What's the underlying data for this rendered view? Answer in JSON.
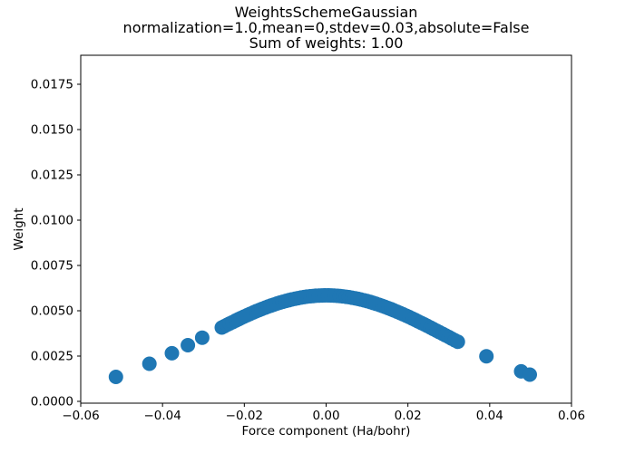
{
  "figure": {
    "background": "#ffffff",
    "text_color": "#000000",
    "accent_color": "#1f77b4"
  },
  "title": {
    "line1": "WeightsSchemeGaussian",
    "line2": "normalization=1.0,mean=0,stdev=0.03,absolute=False",
    "line3": "Sum of weights: 1.00"
  },
  "chart_data": {
    "type": "scatter",
    "title": "WeightsSchemeGaussian\nnormalization=1.0,mean=0,stdev=0.03,absolute=False\nSum of weights: 1.00",
    "xlabel": "Force component (Ha/bohr)",
    "ylabel": "Weight",
    "xlim": [
      -0.06,
      0.06
    ],
    "ylim": [
      -0.0001,
      0.0191
    ],
    "grid": false,
    "legend": "none",
    "marker_color": "#1f77b4",
    "marker_radius_px": 8,
    "xticks": [
      -0.06,
      -0.04,
      -0.02,
      0.0,
      0.02,
      0.04,
      0.06
    ],
    "xtick_labels": [
      "−0.06",
      "−0.04",
      "−0.02",
      "0.00",
      "0.02",
      "0.04",
      "0.06"
    ],
    "yticks": [
      0.0,
      0.0025,
      0.005,
      0.0075,
      0.01,
      0.0125,
      0.015,
      0.0175
    ],
    "ytick_labels": [
      "0.0000",
      "0.0025",
      "0.0050",
      "0.0075",
      "0.0100",
      "0.0125",
      "0.0150",
      "0.0175"
    ],
    "points": [
      [
        -0.0514,
        0.001348
      ],
      [
        -0.0432,
        0.002074
      ],
      [
        -0.0377,
        0.002656
      ],
      [
        -0.0338,
        0.003101
      ],
      [
        -0.0303,
        0.003513
      ],
      [
        -0.0255,
        0.004076
      ],
      [
        -0.0249,
        0.004145
      ],
      [
        -0.0242,
        0.004225
      ],
      [
        -0.0236,
        0.004293
      ],
      [
        -0.0229,
        0.004372
      ],
      [
        -0.0221,
        0.00446
      ],
      [
        -0.0214,
        0.004536
      ],
      [
        -0.0208,
        0.0046
      ],
      [
        -0.0201,
        0.004674
      ],
      [
        -0.0193,
        0.004757
      ],
      [
        -0.0186,
        0.004827
      ],
      [
        -0.0178,
        0.004906
      ],
      [
        -0.0171,
        0.004973
      ],
      [
        -0.0164,
        0.005038
      ],
      [
        -0.0157,
        0.005101
      ],
      [
        -0.0149,
        0.005171
      ],
      [
        -0.0142,
        0.00523
      ],
      [
        -0.0135,
        0.005287
      ],
      [
        -0.0128,
        0.005341
      ],
      [
        -0.012,
        0.0054
      ],
      [
        -0.0113,
        0.005449
      ],
      [
        -0.0106,
        0.005496
      ],
      [
        -0.0098,
        0.005546
      ],
      [
        -0.0091,
        0.005587
      ],
      [
        -0.0084,
        0.005625
      ],
      [
        -0.0076,
        0.005665
      ],
      [
        -0.0069,
        0.005697
      ],
      [
        -0.0061,
        0.00573
      ],
      [
        -0.0054,
        0.005756
      ],
      [
        -0.0047,
        0.005779
      ],
      [
        -0.0039,
        0.005801
      ],
      [
        -0.0032,
        0.005817
      ],
      [
        -0.0025,
        0.00583
      ],
      [
        -0.0017,
        0.005841
      ],
      [
        -0.001,
        0.005847
      ],
      [
        -0.0003,
        0.00585
      ],
      [
        0.0005,
        0.005849
      ],
      [
        0.0012,
        0.005845
      ],
      [
        0.0019,
        0.005838
      ],
      [
        0.0027,
        0.005826
      ],
      [
        0.0034,
        0.005813
      ],
      [
        0.0041,
        0.005796
      ],
      [
        0.0049,
        0.005772
      ],
      [
        0.0056,
        0.005749
      ],
      [
        0.0063,
        0.005722
      ],
      [
        0.0071,
        0.005688
      ],
      [
        0.0078,
        0.005656
      ],
      [
        0.0085,
        0.00562
      ],
      [
        0.0093,
        0.005576
      ],
      [
        0.01,
        0.005534
      ],
      [
        0.0108,
        0.005483
      ],
      [
        0.0115,
        0.005436
      ],
      [
        0.0122,
        0.005386
      ],
      [
        0.013,
        0.005326
      ],
      [
        0.0137,
        0.005271
      ],
      [
        0.0144,
        0.005214
      ],
      [
        0.0152,
        0.005145
      ],
      [
        0.0159,
        0.005083
      ],
      [
        0.0166,
        0.005019
      ],
      [
        0.0174,
        0.004944
      ],
      [
        0.0181,
        0.004877
      ],
      [
        0.0188,
        0.004807
      ],
      [
        0.0196,
        0.004726
      ],
      [
        0.0203,
        0.004653
      ],
      [
        0.0211,
        0.004568
      ],
      [
        0.0218,
        0.004493
      ],
      [
        0.0225,
        0.004416
      ],
      [
        0.0233,
        0.004327
      ],
      [
        0.024,
        0.004248
      ],
      [
        0.0247,
        0.004168
      ],
      [
        0.0255,
        0.004076
      ],
      [
        0.0262,
        0.003995
      ],
      [
        0.027,
        0.003902
      ],
      [
        0.0277,
        0.00382
      ],
      [
        0.0285,
        0.003725
      ],
      [
        0.0292,
        0.003643
      ],
      [
        0.03,
        0.003548
      ],
      [
        0.0307,
        0.003466
      ],
      [
        0.0315,
        0.003371
      ],
      [
        0.0322,
        0.003288
      ],
      [
        0.0392,
        0.002491
      ],
      [
        0.0477,
        0.001653
      ],
      [
        0.0498,
        0.001475
      ]
    ]
  }
}
